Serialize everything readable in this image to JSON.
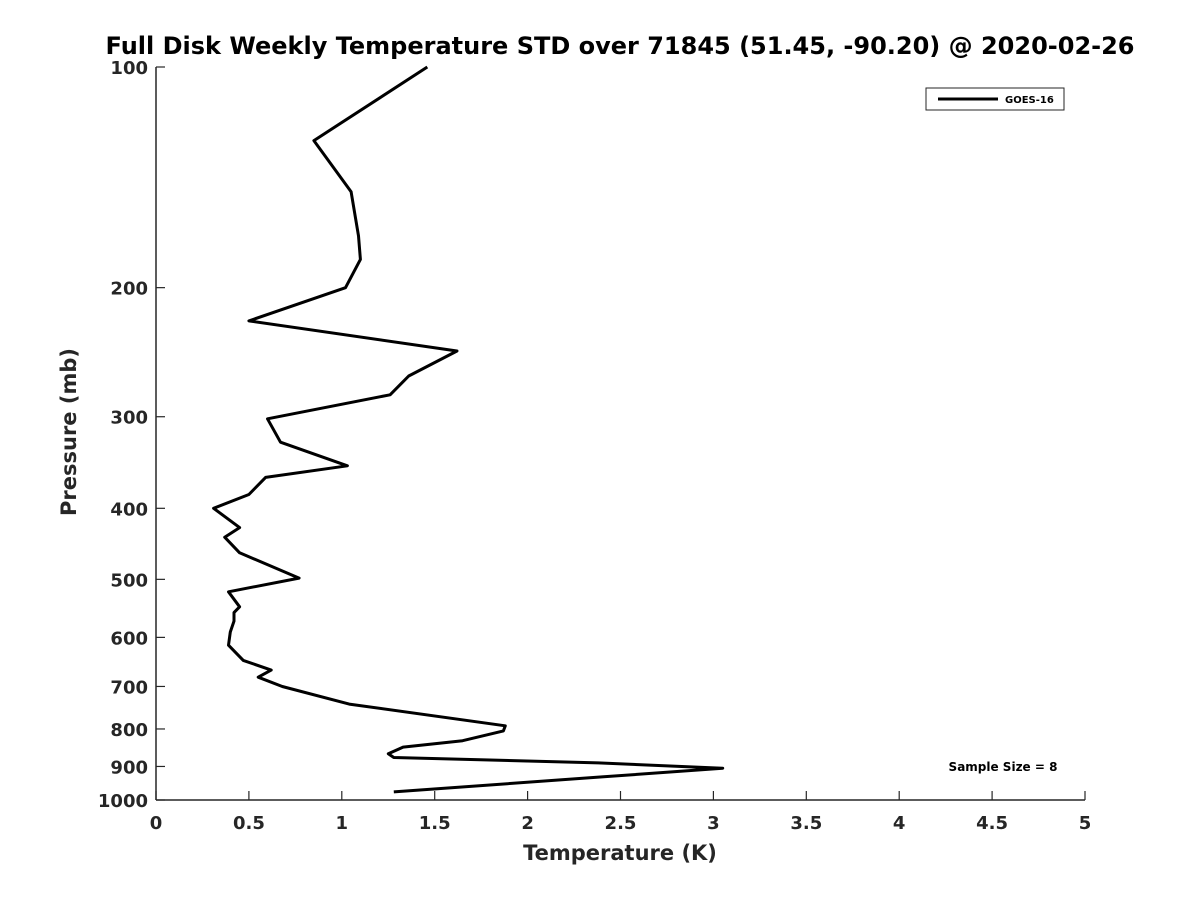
{
  "chart_data": {
    "type": "line",
    "title": "Full Disk Weekly Temperature STD over 71845 (51.45, -90.20) @ 2020-02-26",
    "xlabel": "Temperature (K)",
    "ylabel": "Pressure (mb)",
    "xlim": [
      0,
      5
    ],
    "ylim": [
      100,
      1000
    ],
    "y_scale": "log",
    "y_reversed": true,
    "grid": false,
    "legend_position": "top-right",
    "x_ticks": [
      "0",
      "0.5",
      "1",
      "1.5",
      "2",
      "2.5",
      "3",
      "3.5",
      "4",
      "4.5",
      "5"
    ],
    "y_ticks": [
      "100",
      "200",
      "300",
      "400",
      "500",
      "600",
      "700",
      "800",
      "900",
      "1000"
    ],
    "series": [
      {
        "name": "GOES-16",
        "color": "#000000",
        "x": [
          1.46,
          0.85,
          1.05,
          1.09,
          1.1,
          1.02,
          0.5,
          1.62,
          1.36,
          1.26,
          0.6,
          0.67,
          1.03,
          0.59,
          0.5,
          0.31,
          0.45,
          0.37,
          0.45,
          0.77,
          0.39,
          0.45,
          0.42,
          0.42,
          0.4,
          0.39,
          0.47,
          0.62,
          0.55,
          0.68,
          1.04,
          1.88,
          1.87,
          1.65,
          1.33,
          1.25,
          1.28,
          2.38,
          3.05,
          2.4,
          1.28
        ],
        "y": [
          100,
          126,
          148,
          170,
          183,
          200,
          222,
          244,
          264,
          280,
          302,
          325,
          350,
          363,
          383,
          400,
          425,
          438,
          460,
          498,
          520,
          545,
          555,
          570,
          590,
          615,
          645,
          665,
          680,
          700,
          740,
          792,
          805,
          830,
          847,
          865,
          875,
          890,
          905,
          930,
          975
        ]
      }
    ],
    "annotation": "Sample Size = 8"
  }
}
